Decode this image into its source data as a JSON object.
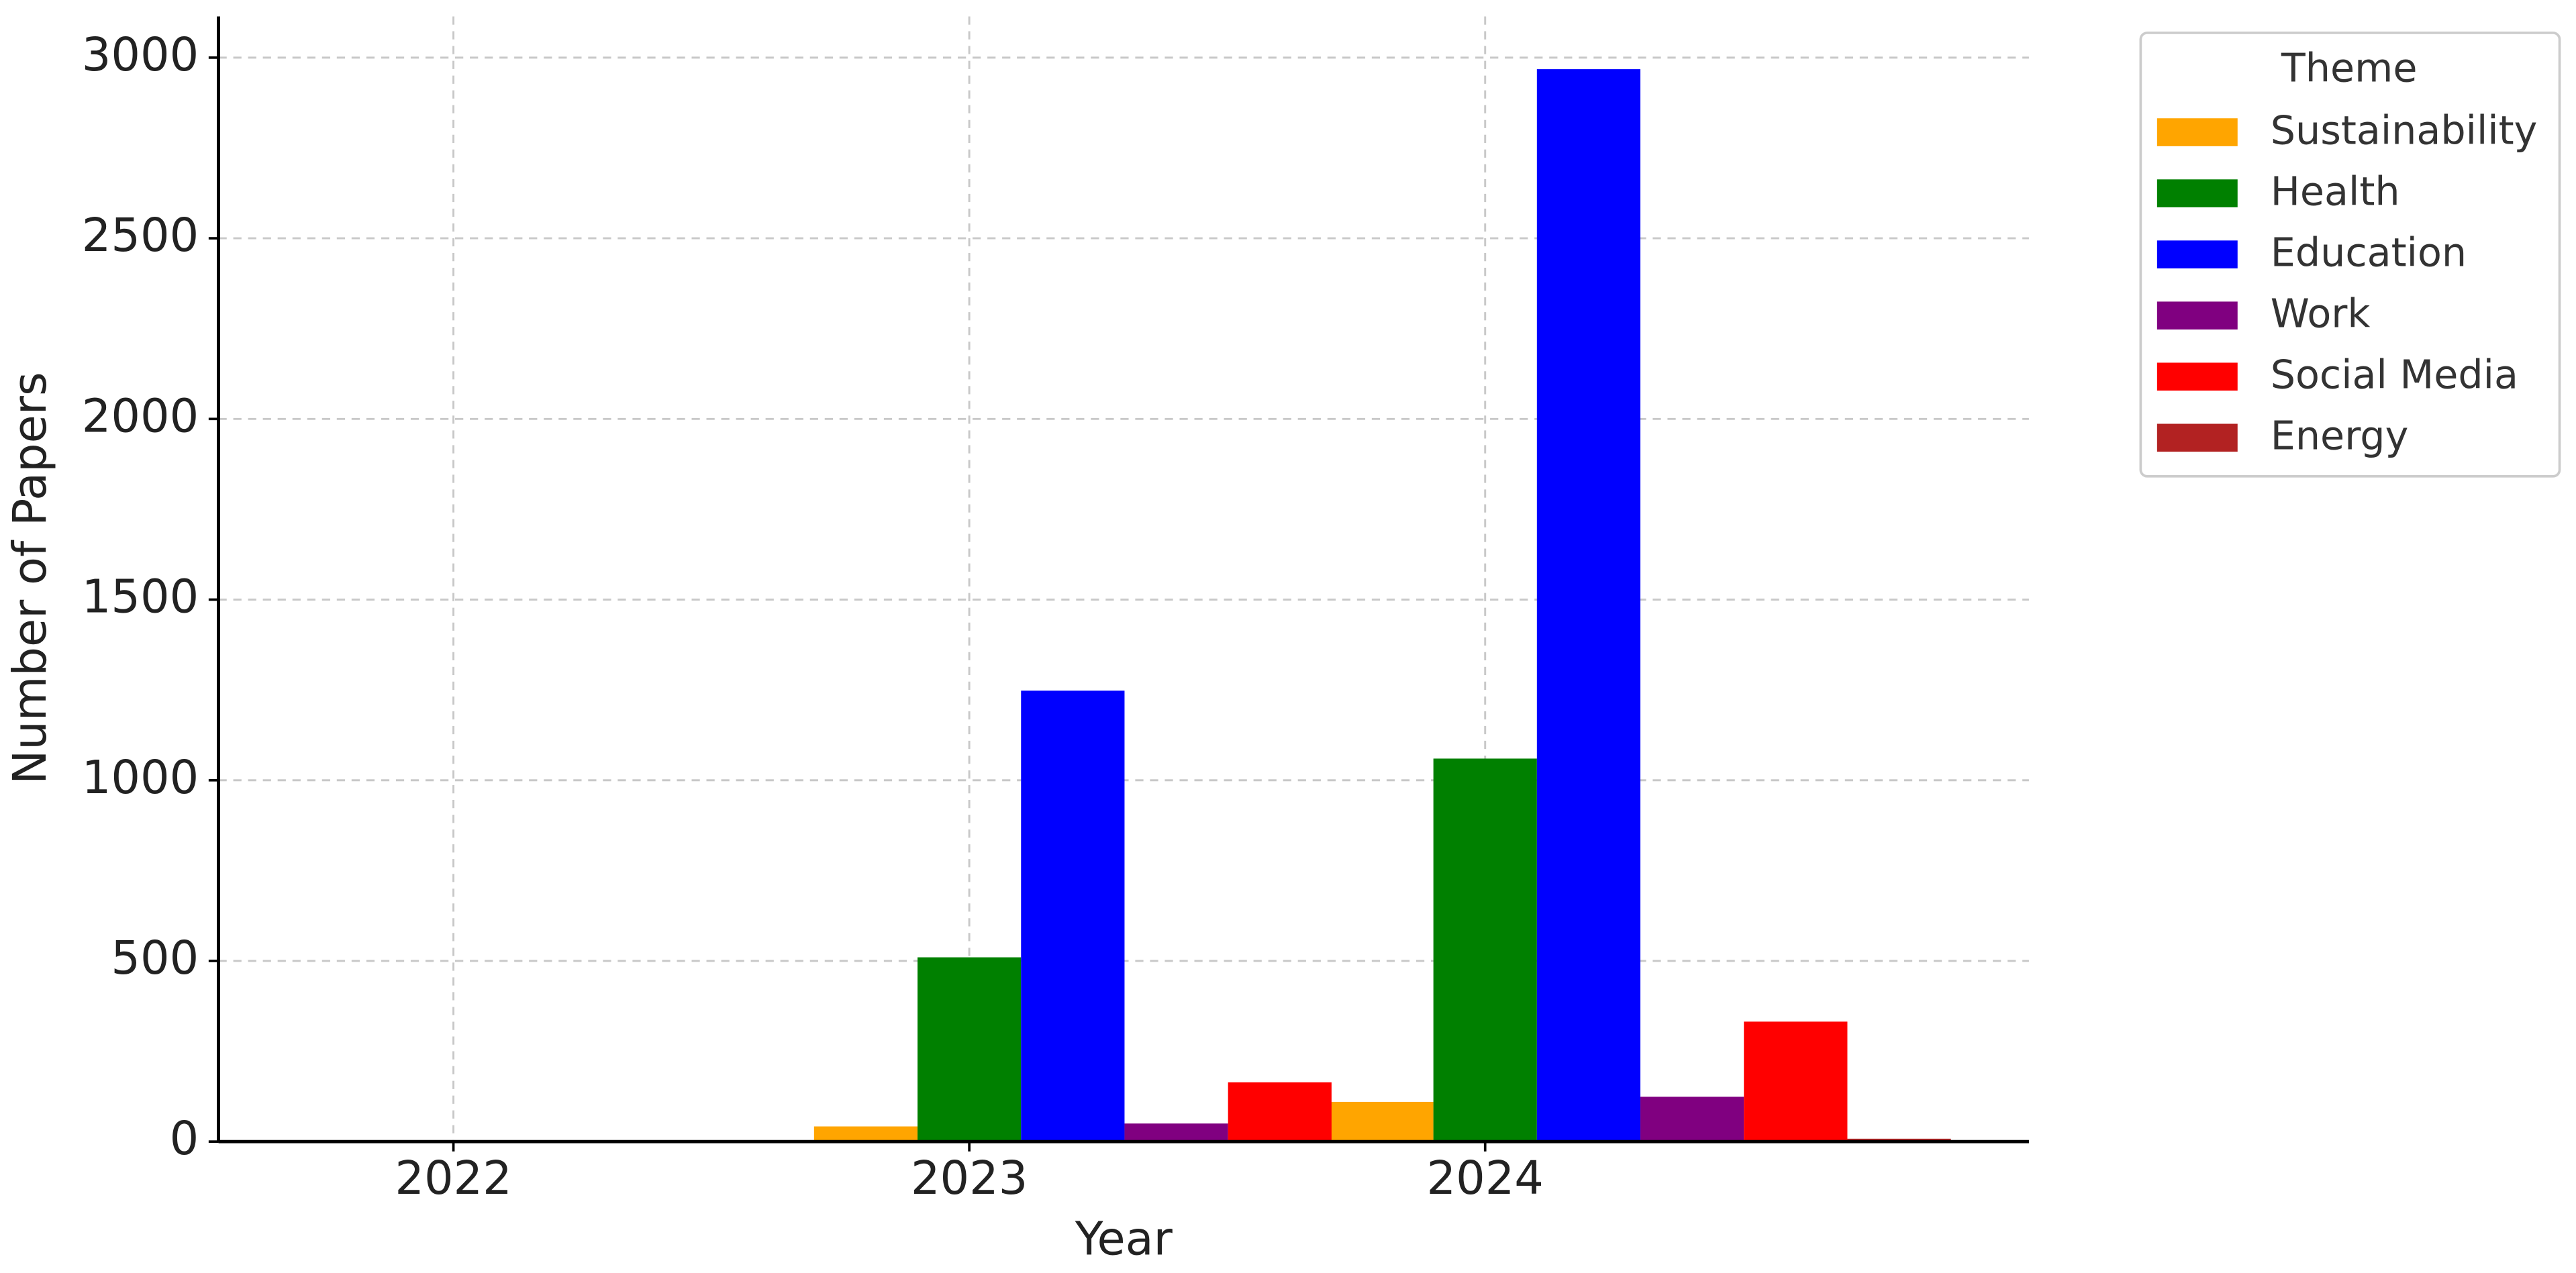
{
  "chart_data": {
    "type": "bar",
    "xlabel": "Year",
    "ylabel": "Number of Papers",
    "categories": [
      "2022",
      "2023",
      "2024"
    ],
    "series": [
      {
        "name": "Sustainability",
        "color": "#ffa500",
        "values": [
          0,
          42,
          110
        ]
      },
      {
        "name": "Health",
        "color": "#008000",
        "values": [
          0,
          510,
          1060
        ]
      },
      {
        "name": "Education",
        "color": "#0000ff",
        "values": [
          0,
          1248,
          2968
        ]
      },
      {
        "name": "Work",
        "color": "#800080",
        "values": [
          0,
          50,
          124
        ]
      },
      {
        "name": "Social Media",
        "color": "#ff0000",
        "values": [
          0,
          164,
          332
        ]
      },
      {
        "name": "Energy",
        "color": "#b22222",
        "values": [
          0,
          0,
          8
        ]
      }
    ],
    "ylim": [
      0,
      3114
    ],
    "yticks": [
      0,
      500,
      1000,
      1500,
      2000,
      2500,
      3000
    ],
    "grid": true,
    "legend_title": "Theme",
    "legend_position": "outside-upper-right"
  }
}
